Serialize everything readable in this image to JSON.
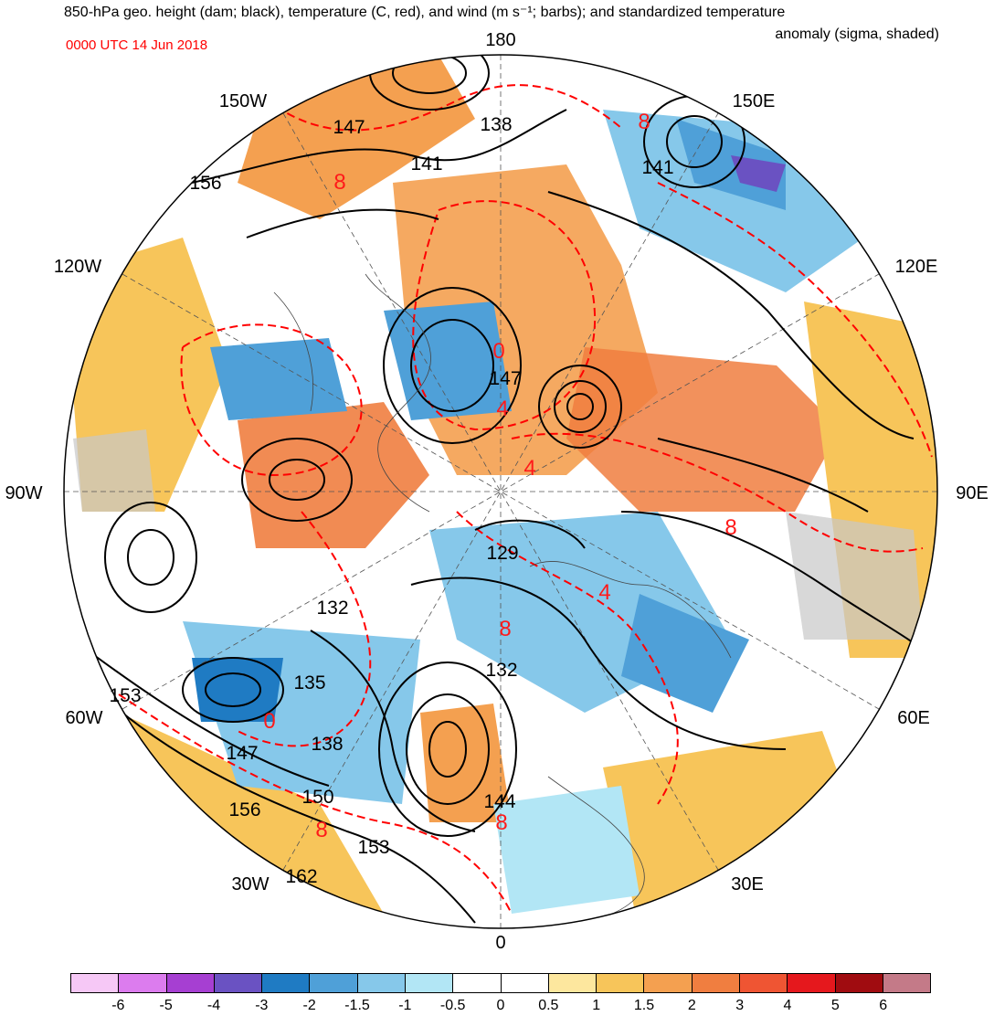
{
  "title": {
    "line1": "850-hPa geo. height (dam; black), temperature (C, red), and wind (m s⁻¹; barbs); and standardized temperature",
    "line2": "anomaly (sigma, shaded)",
    "valid_time": "0000 UTC 14 Jun 2018"
  },
  "longitude_labels": {
    "lon_0": "0",
    "lon_30e": "30E",
    "lon_60e": "60E",
    "lon_90e": "90E",
    "lon_120e": "120E",
    "lon_150e": "150E",
    "lon_180": "180",
    "lon_150w": "150W",
    "lon_120w": "120W",
    "lon_90w": "90W",
    "lon_60w": "60W",
    "lon_30w": "30W"
  },
  "height_contour_labels": {
    "h138_top": "138",
    "h141_top": "141",
    "h141_right": "141",
    "h147_top": "147",
    "h156_left": "156",
    "h147_center": "147",
    "h129": "129",
    "h132_left": "132",
    "h132_center": "132",
    "h135": "135",
    "h138_low": "138",
    "h144": "144",
    "h147_low": "147",
    "h150": "150",
    "h153_left": "153",
    "h153_low": "153",
    "h156_low": "156",
    "h162": "162"
  },
  "temperature_labels": {
    "t8_top": "8",
    "t8_ne": "8",
    "t0_center": "0",
    "t4_center": "4",
    "t4_lower": "4",
    "t8_east": "8",
    "t4_east": "4",
    "t8_atlantic": "8",
    "t0_greenland": "0",
    "t8_sw": "8",
    "t8_europe": "8"
  },
  "colorbar": {
    "colors": [
      "#f6c8f6",
      "#dc7cee",
      "#a63fd2",
      "#6a52c2",
      "#1f7bc3",
      "#4fa0d8",
      "#86c8ea",
      "#b2e6f5",
      "#ffffff",
      "#ffffff",
      "#fde79e",
      "#f7c55a",
      "#f4a050",
      "#f07e40",
      "#ef5533",
      "#e5181d",
      "#a00c10",
      "#c47a88"
    ],
    "tick_labels": [
      "-6",
      "-5",
      "-4",
      "-3",
      "-2",
      "-1.5",
      "-1",
      "-0.5",
      "0",
      "0.5",
      "1",
      "1.5",
      "2",
      "3",
      "4",
      "5",
      "6"
    ]
  },
  "map_style": {
    "height_contour_color": "#000000",
    "temperature_contour_color": "#ff0000",
    "land_no_anomaly_color": "#c8c8c8"
  }
}
